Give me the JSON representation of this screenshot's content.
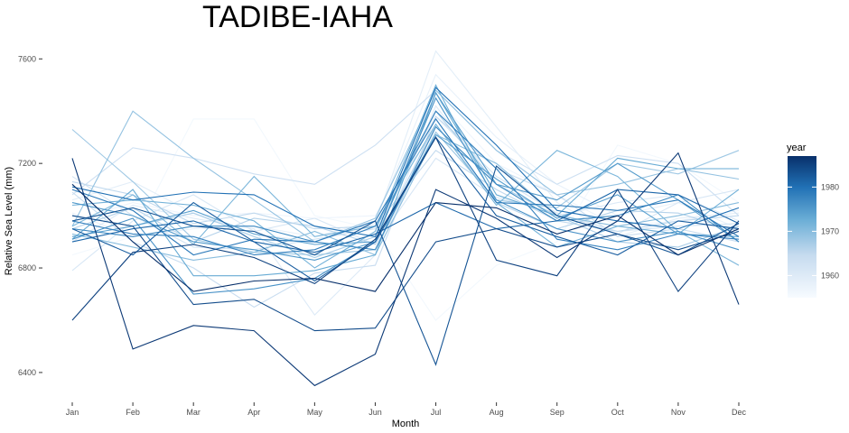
{
  "chart_data": {
    "type": "line",
    "title": "TADIBE-IAHA",
    "xlabel": "Month",
    "ylabel": "Relative Sea Level (mm)",
    "categories": [
      "Jan",
      "Feb",
      "Mar",
      "Apr",
      "May",
      "Jun",
      "Jul",
      "Aug",
      "Sep",
      "Oct",
      "Nov",
      "Dec"
    ],
    "y_ticks": [
      6400,
      6800,
      7200,
      7600
    ],
    "ylim": [
      6310,
      7670
    ],
    "grid": false,
    "legend": {
      "title": "year",
      "position": "right",
      "type": "colorbar",
      "range": [
        1955,
        1987
      ],
      "ticks": [
        1960,
        1970,
        1980
      ],
      "colors": [
        "#f7fbff",
        "#c6dbef",
        "#6baed6",
        "#2171b5",
        "#08306b"
      ]
    },
    "series": [
      {
        "year": 1956,
        "values": [
          6850,
          6920,
          7370,
          7370,
          7000,
          6950,
          6600,
          6810,
          6900,
          7270,
          7200,
          7050
        ]
      },
      {
        "year": 1957,
        "values": [
          6980,
          7050,
          7000,
          7010,
          6990,
          7000,
          7450,
          7200,
          7080,
          6960,
          6980,
          7020
        ]
      },
      {
        "year": 1958,
        "values": [
          7010,
          6920,
          6950,
          6960,
          6920,
          6980,
          7540,
          7300,
          7120,
          7000,
          7050,
          6950
        ]
      },
      {
        "year": 1959,
        "values": [
          7060,
          7130,
          7010,
          6930,
          6900,
          6970,
          7630,
          7340,
          7050,
          6920,
          6990,
          7010
        ]
      },
      {
        "year": 1960,
        "values": [
          6900,
          7040,
          6990,
          6950,
          6620,
          6850,
          7420,
          7120,
          7000,
          7050,
          7080,
          6980
        ]
      },
      {
        "year": 1961,
        "values": [
          6790,
          6980,
          7080,
          6940,
          6990,
          6890,
          7220,
          7070,
          7010,
          6930,
          7050,
          7100
        ]
      },
      {
        "year": 1962,
        "values": [
          7150,
          7000,
          6880,
          6870,
          6910,
          6950,
          7380,
          7150,
          7010,
          6940,
          6960,
          6970
        ]
      },
      {
        "year": 1963,
        "values": [
          7080,
          7260,
          7220,
          7160,
          7120,
          7270,
          7480,
          7250,
          7120,
          7230,
          7200,
          7000
        ]
      },
      {
        "year": 1964,
        "values": [
          7090,
          6900,
          6800,
          6650,
          6780,
          6810,
          7380,
          7180,
          7080,
          6920,
          6950,
          6900
        ]
      },
      {
        "year": 1965,
        "values": [
          7130,
          7080,
          6970,
          7010,
          6950,
          6960,
          7250,
          7100,
          6980,
          6940,
          6980,
          7000
        ]
      },
      {
        "year": 1966,
        "values": [
          6950,
          7030,
          6900,
          6990,
          6960,
          6890,
          7350,
          7050,
          6950,
          7020,
          7010,
          6940
        ]
      },
      {
        "year": 1967,
        "values": [
          7000,
          6960,
          7010,
          6920,
          6840,
          6920,
          7400,
          7120,
          7000,
          6900,
          6880,
          6960
        ]
      },
      {
        "year": 1968,
        "values": [
          7330,
          7130,
          6910,
          6860,
          6850,
          6870,
          7320,
          7060,
          7030,
          7200,
          7160,
          7250
        ]
      },
      {
        "year": 1969,
        "values": [
          6960,
          7400,
          7220,
          7060,
          6900,
          6990,
          7480,
          7250,
          7080,
          7120,
          7180,
          7140
        ]
      },
      {
        "year": 1970,
        "values": [
          6930,
          6880,
          6830,
          6860,
          6940,
          6850,
          7310,
          7200,
          7000,
          6960,
          7000,
          7050
        ]
      },
      {
        "year": 1971,
        "values": [
          6960,
          7080,
          6890,
          7150,
          6920,
          6960,
          7350,
          7040,
          7250,
          7150,
          6940,
          6810
        ]
      },
      {
        "year": 1972,
        "values": [
          7040,
          7060,
          7040,
          6980,
          6800,
          6940,
          7500,
          7050,
          6880,
          6960,
          6930,
          7100
        ]
      },
      {
        "year": 1973,
        "values": [
          6910,
          7100,
          6770,
          6770,
          6790,
          6850,
          7470,
          7080,
          7000,
          7220,
          7180,
          7180
        ]
      },
      {
        "year": 1974,
        "values": [
          6920,
          6960,
          7020,
          6930,
          6890,
          6900,
          7310,
          7140,
          6990,
          7080,
          6930,
          6920
        ]
      },
      {
        "year": 1975,
        "values": [
          7050,
          7000,
          6900,
          6870,
          6830,
          6900,
          7470,
          7120,
          7060,
          7200,
          7060,
          6900
        ]
      },
      {
        "year": 1976,
        "values": [
          6910,
          6990,
          6700,
          6720,
          6760,
          6900,
          7450,
          7060,
          6950,
          6900,
          6940,
          6870
        ]
      },
      {
        "year": 1977,
        "values": [
          6950,
          6920,
          6960,
          6960,
          6900,
          6870,
          7340,
          7120,
          6980,
          7000,
          7080,
          6900
        ]
      },
      {
        "year": 1978,
        "values": [
          6980,
          6930,
          6920,
          6850,
          6870,
          6960,
          7400,
          7180,
          6910,
          6870,
          6930,
          6910
        ]
      },
      {
        "year": 1979,
        "values": [
          7100,
          7020,
          6850,
          6910,
          6900,
          6980,
          7370,
          7050,
          7040,
          7020,
          7060,
          6920
        ]
      },
      {
        "year": 1980,
        "values": [
          7110,
          7060,
          7090,
          7080,
          6960,
          6920,
          7490,
          7270,
          7020,
          6980,
          6950,
          7030
        ]
      },
      {
        "year": 1981,
        "values": [
          6900,
          6950,
          6980,
          6900,
          6860,
          6930,
          7050,
          6950,
          6980,
          7100,
          7080,
          6970
        ]
      },
      {
        "year": 1982,
        "values": [
          6950,
          6850,
          7050,
          6900,
          6750,
          6900,
          7300,
          7000,
          6920,
          6850,
          6980,
          6950
        ]
      },
      {
        "year": 1983,
        "values": [
          6980,
          7030,
          6960,
          6940,
          6850,
          6980,
          6430,
          7190,
          7000,
          6930,
          6850,
          6970
        ]
      },
      {
        "year": 1984,
        "values": [
          7000,
          6960,
          6660,
          6680,
          6560,
          6570,
          6900,
          6950,
          6880,
          6930,
          6870,
          6940
        ]
      },
      {
        "year": 1985,
        "values": [
          6600,
          6860,
          6890,
          6840,
          6740,
          6910,
          7300,
          6830,
          6770,
          7100,
          6710,
          6980
        ]
      },
      {
        "year": 1986,
        "values": [
          7220,
          6490,
          6580,
          6560,
          6350,
          6470,
          7100,
          6990,
          6840,
          6980,
          7240,
          6660
        ]
      },
      {
        "year": 1987,
        "values": [
          7120,
          6900,
          6710,
          6750,
          6760,
          6710,
          7050,
          7030,
          6930,
          7000,
          6850,
          6950
        ]
      }
    ]
  }
}
